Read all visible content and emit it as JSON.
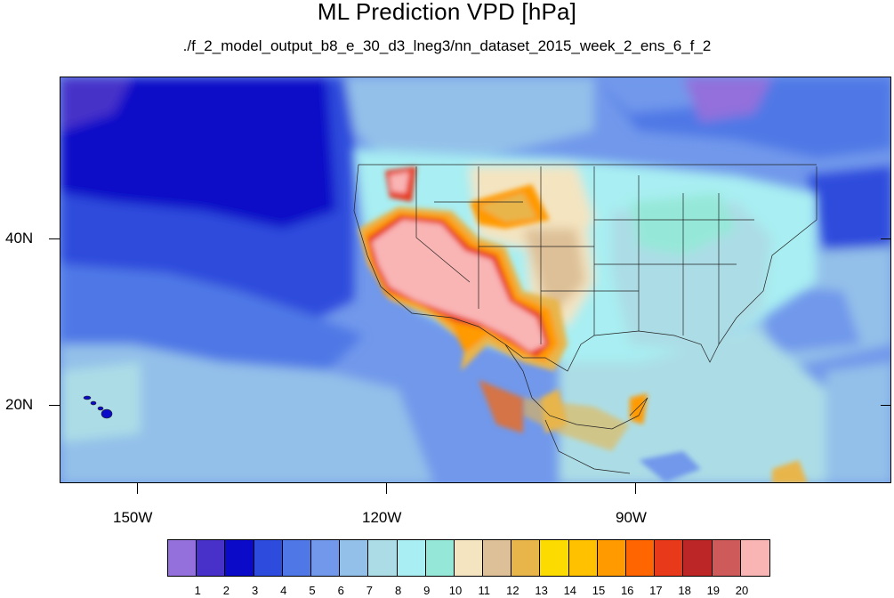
{
  "title": "ML Prediction VPD [hPa]",
  "subtitle": "./f_2_model_output_b8_e_30_d3_lneg3/nn_dataset_2015_week_2_ens_6_f_2",
  "axes": {
    "x_labels": [
      "150W",
      "120W",
      "90W"
    ],
    "y_labels": [
      "40N",
      "20N"
    ]
  },
  "colorbar": {
    "labels": [
      "1",
      "2",
      "3",
      "4",
      "5",
      "6",
      "7",
      "8",
      "9",
      "10",
      "11",
      "12",
      "13",
      "14",
      "15",
      "16",
      "17",
      "18",
      "19",
      "20"
    ],
    "colors": [
      "#9370db",
      "#4731c8",
      "#0a0ac8",
      "#2d4bdc",
      "#4f78e6",
      "#7198eb",
      "#93c0e9",
      "#acdde6",
      "#a8eef2",
      "#95e8d8",
      "#f4e4c0",
      "#ddc097",
      "#e8b54b",
      "#fcdc00",
      "#ffc100",
      "#ff9a00",
      "#ff6500",
      "#e83a1a",
      "#bd2626",
      "#cf5a5a",
      "#f9b4b4"
    ]
  },
  "map": {
    "region": "Continental United States, Mexico and eastern Pacific",
    "highest_vpd_area": "Southwest US and northern Mexico"
  }
}
